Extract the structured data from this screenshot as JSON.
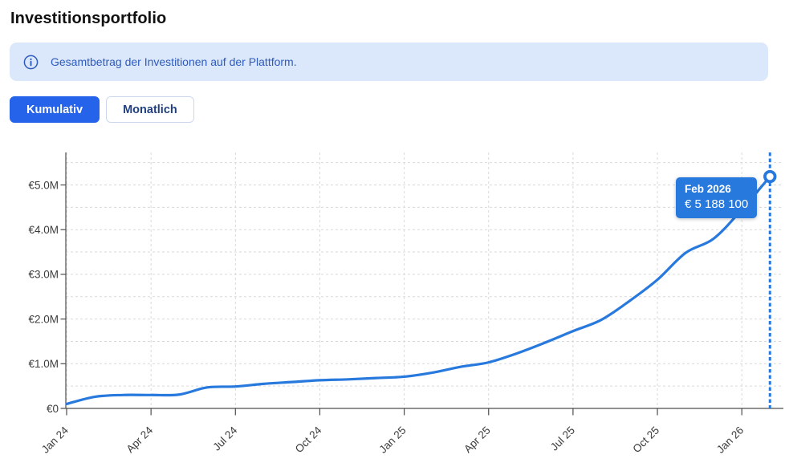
{
  "page": {
    "title": "Investitionsportfolio"
  },
  "banner": {
    "icon": "info-icon",
    "text": "Gesamtbetrag der Investitionen auf der Plattform."
  },
  "toggle": {
    "cumulative_label": "Kumulativ",
    "monthly_label": "Monatlich",
    "active": "Kumulativ"
  },
  "tooltip": {
    "title": "Feb 2026",
    "value": "€ 5 188 100"
  },
  "colors": {
    "accent_line": "#2879dd",
    "accent_button": "#2563eb",
    "banner_bg": "#dbe7fa",
    "banner_text": "#2e5cbe",
    "grid": "#d9d9d9",
    "axis": "#4d4d4d",
    "tick_text": "#3d3d3d",
    "marker_fill": "#ffffff"
  },
  "chart_data": {
    "type": "line",
    "title": "Investitionsportfolio (Kumulativ)",
    "x": [
      "Jan 24",
      "Feb 24",
      "Mar 24",
      "Apr 24",
      "May 24",
      "Jun 24",
      "Jul 24",
      "Aug 24",
      "Sep 24",
      "Oct 24",
      "Nov 24",
      "Dec 24",
      "Jan 25",
      "Feb 25",
      "Mar 25",
      "Apr 25",
      "May 25",
      "Jun 25",
      "Jul 25",
      "Aug 25",
      "Sep 25",
      "Oct 25",
      "Nov 25",
      "Dec 25",
      "Jan 26",
      "Feb 26"
    ],
    "values": [
      100000,
      260000,
      300000,
      300000,
      310000,
      470000,
      490000,
      550000,
      590000,
      630000,
      650000,
      680000,
      710000,
      800000,
      930000,
      1030000,
      1230000,
      1470000,
      1730000,
      1980000,
      2400000,
      2880000,
      3480000,
      3800000,
      4450000,
      5188100
    ],
    "x_tick_labels": [
      "Jan 24",
      "Apr 24",
      "Jul 24",
      "Oct 24",
      "Jan 25",
      "Apr 25",
      "Jul 25",
      "Oct 25",
      "Jan 26"
    ],
    "x_tick_indices": [
      0,
      3,
      6,
      9,
      12,
      15,
      18,
      21,
      24
    ],
    "y_tick_labels": [
      "€0",
      "€1.0M",
      "€2.0M",
      "€3.0M",
      "€4.0M",
      "€5.0M"
    ],
    "y_tick_values": [
      0,
      1000000,
      2000000,
      3000000,
      4000000,
      5000000
    ],
    "ylim": [
      0,
      5500000
    ],
    "grid": true,
    "legend": false,
    "xlabel": "",
    "ylabel": "",
    "highlight": {
      "index": 25,
      "label": "Feb 2026",
      "value": 5188100
    }
  }
}
